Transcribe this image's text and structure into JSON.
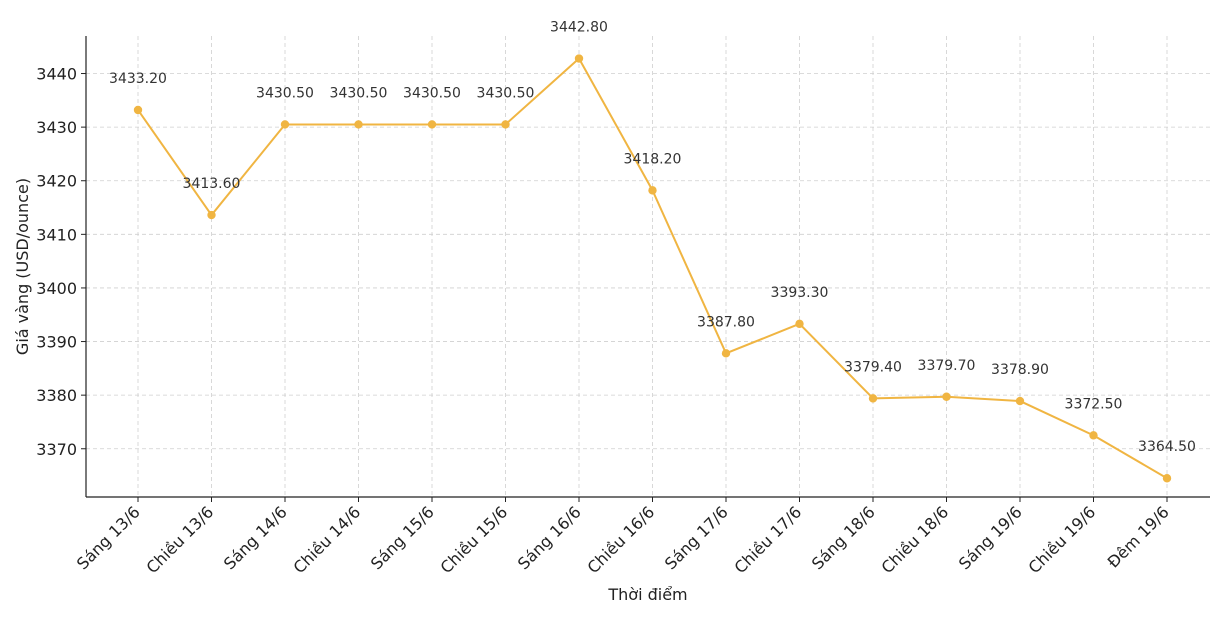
{
  "chart_data": {
    "type": "line",
    "title": "",
    "xlabel": "Thời điểm",
    "ylabel": "Giá vàng (USD/ounce)",
    "categories": [
      "Sáng 13/6",
      "Chiều 13/6",
      "Sáng 14/6",
      "Chiều 14/6",
      "Sáng 15/6",
      "Chiều 15/6",
      "Sáng 16/6",
      "Chiều 16/6",
      "Sáng 17/6",
      "Chiều 17/6",
      "Sáng 18/6",
      "Chiều 18/6",
      "Sáng 19/6",
      "Chiều 19/6",
      "Đêm 19/6"
    ],
    "series": [
      {
        "values": [
          3433.2,
          3413.6,
          3430.5,
          3430.5,
          3430.5,
          3430.5,
          3442.8,
          3418.2,
          3387.8,
          3393.3,
          3379.4,
          3379.7,
          3378.9,
          3372.5,
          3364.5
        ],
        "data_labels": [
          "3433.20",
          "3413.60",
          "3430.50",
          "3430.50",
          "3430.50",
          "3430.50",
          "3442.80",
          "3418.20",
          "3387.80",
          "3393.30",
          "3379.40",
          "3379.70",
          "3378.90",
          "3372.50",
          "3364.50"
        ],
        "color": "#f0b542"
      }
    ],
    "yticks": [
      3370,
      3380,
      3390,
      3400,
      3410,
      3420,
      3430,
      3440
    ],
    "ytick_labels": [
      "3370",
      "3380",
      "3390",
      "3400",
      "3410",
      "3420",
      "3430",
      "3440"
    ],
    "ylim": [
      3361,
      3447
    ],
    "grid": true,
    "legend": "none"
  }
}
